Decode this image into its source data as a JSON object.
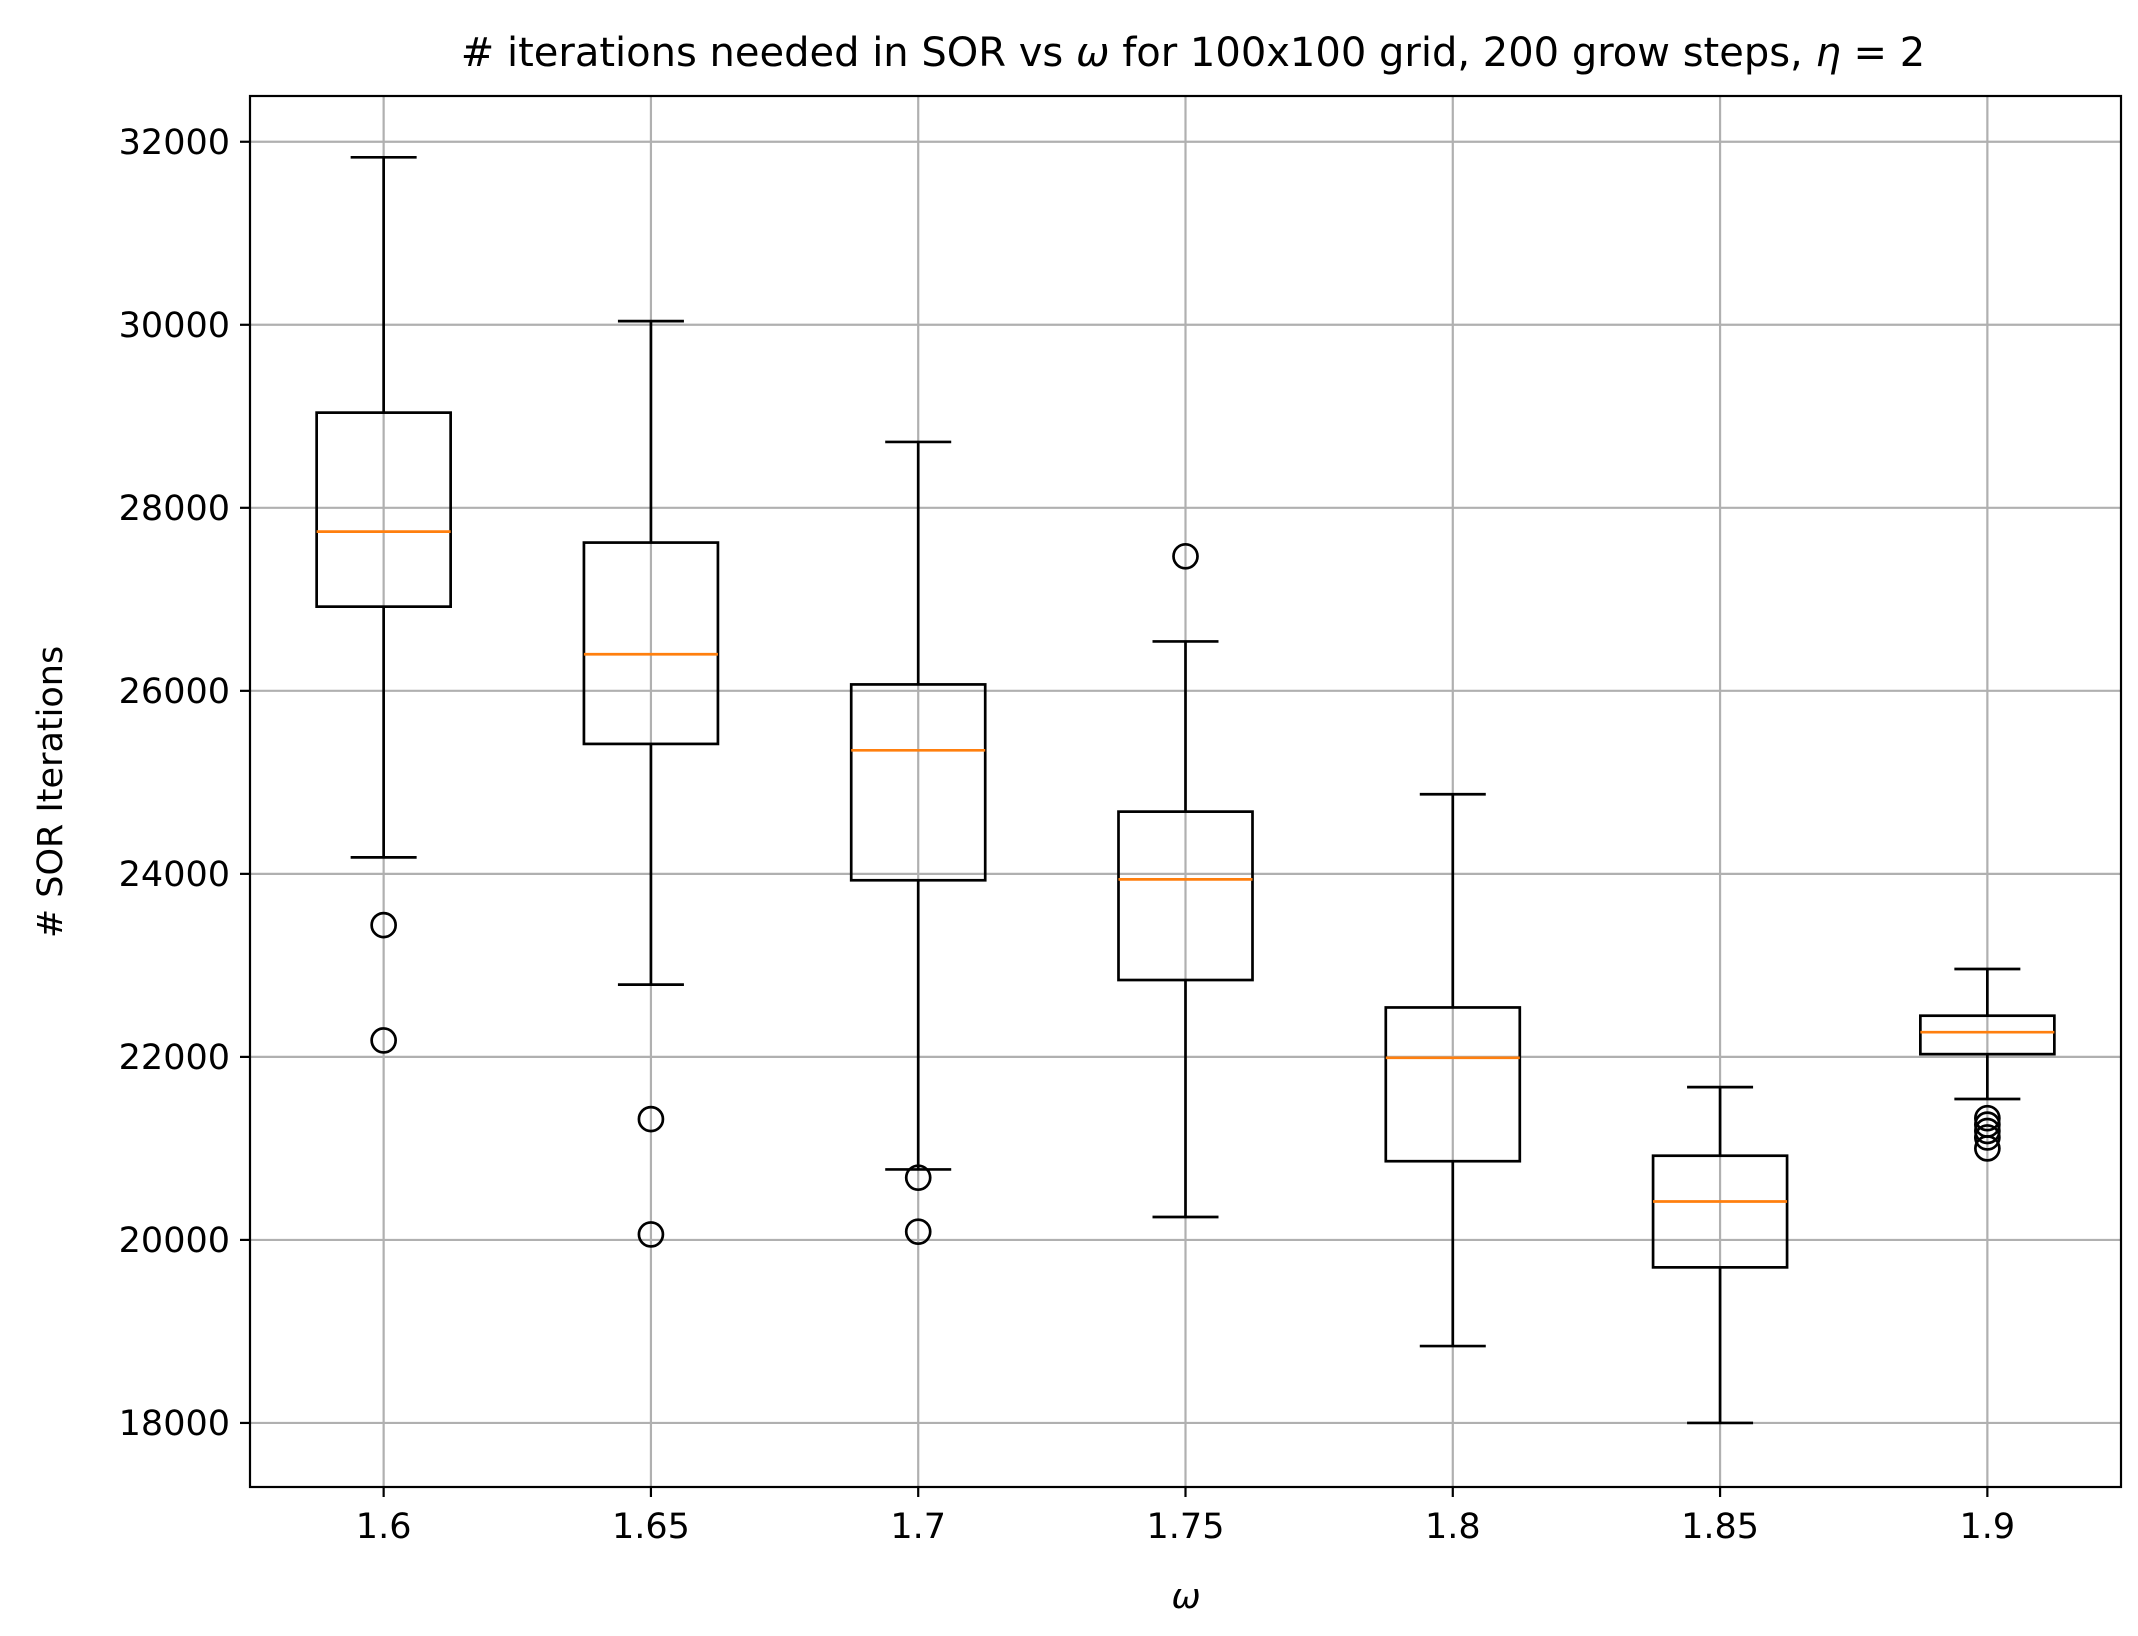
{
  "chart_data": {
    "type": "box",
    "title_prefix": "# iterations needed in SOR vs ",
    "title_omega": "ω",
    "title_middle": " for 100x100 grid, 200 grow steps, ",
    "title_eta": "η",
    "title_equals": " = 2",
    "xlabel": "ω",
    "ylabel": "# SOR Iterations",
    "ylim": [
      17300,
      32500
    ],
    "yticks": [
      "18000",
      "20000",
      "22000",
      "24000",
      "26000",
      "28000",
      "30000",
      "32000"
    ],
    "categories": [
      "1.6",
      "1.65",
      "1.7",
      "1.75",
      "1.8",
      "1.85",
      "1.9"
    ],
    "grid": true,
    "colors": {
      "box": "#000000",
      "median": "#ff7f0e",
      "grid": "#b0b0b0"
    },
    "boxes": [
      {
        "category": "1.6",
        "whislo": 24180,
        "q1": 26920,
        "median": 27740,
        "q3": 29040,
        "whishi": 31830,
        "fliers": [
          23440,
          22180
        ]
      },
      {
        "category": "1.65",
        "whislo": 22790,
        "q1": 25420,
        "median": 26400,
        "q3": 27620,
        "whishi": 30040,
        "fliers": [
          21320,
          20060
        ]
      },
      {
        "category": "1.7",
        "whislo": 20770,
        "q1": 23930,
        "median": 25350,
        "q3": 26070,
        "whishi": 28720,
        "fliers": [
          20680,
          20090
        ]
      },
      {
        "category": "1.75",
        "whislo": 20250,
        "q1": 22840,
        "median": 23940,
        "q3": 24680,
        "whishi": 26540,
        "fliers": [
          27470
        ]
      },
      {
        "category": "1.8",
        "whislo": 18840,
        "q1": 20860,
        "median": 21990,
        "q3": 22540,
        "whishi": 24870,
        "fliers": []
      },
      {
        "category": "1.85",
        "whislo": 18000,
        "q1": 19700,
        "median": 20420,
        "q3": 20920,
        "whishi": 21670,
        "fliers": []
      },
      {
        "category": "1.9",
        "whislo": 21540,
        "q1": 22030,
        "median": 22270,
        "q3": 22450,
        "whishi": 22960,
        "fliers": [
          21330,
          21260,
          21190,
          21120,
          21000
        ]
      }
    ]
  }
}
